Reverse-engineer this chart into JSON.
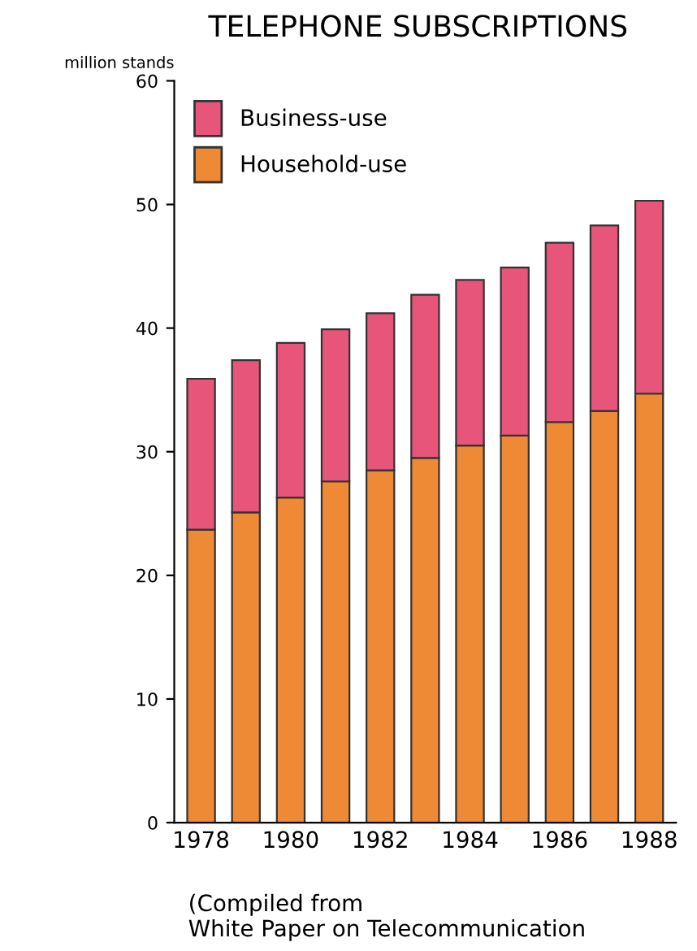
{
  "chart_data": {
    "type": "bar",
    "title": "TELEPHONE SUBSCRIPTIONS",
    "ylabel": "million stands",
    "categories": [
      "1978",
      null,
      "1980",
      null,
      "1982",
      null,
      "1984",
      null,
      "1986",
      null,
      "1988"
    ],
    "stacked": true,
    "series": [
      {
        "name": "Household-use",
        "color": "#ee8a35",
        "values": [
          23.7,
          25.1,
          26.3,
          27.6,
          28.5,
          29.5,
          30.5,
          31.3,
          32.4,
          33.3,
          34.7
        ]
      },
      {
        "name": "Business-use",
        "color": "#e8557a",
        "values": [
          12.2,
          12.3,
          12.5,
          12.3,
          12.7,
          13.2,
          13.4,
          13.6,
          14.5,
          15.0,
          15.6
        ]
      }
    ],
    "ylim": [
      0,
      60
    ],
    "yticks": [
      0,
      10,
      20,
      30,
      40,
      50,
      60
    ],
    "grid": false,
    "legend": "top left",
    "annotations": [
      "(Compiled from\nWhite Paper on Telecommunication"
    ]
  }
}
